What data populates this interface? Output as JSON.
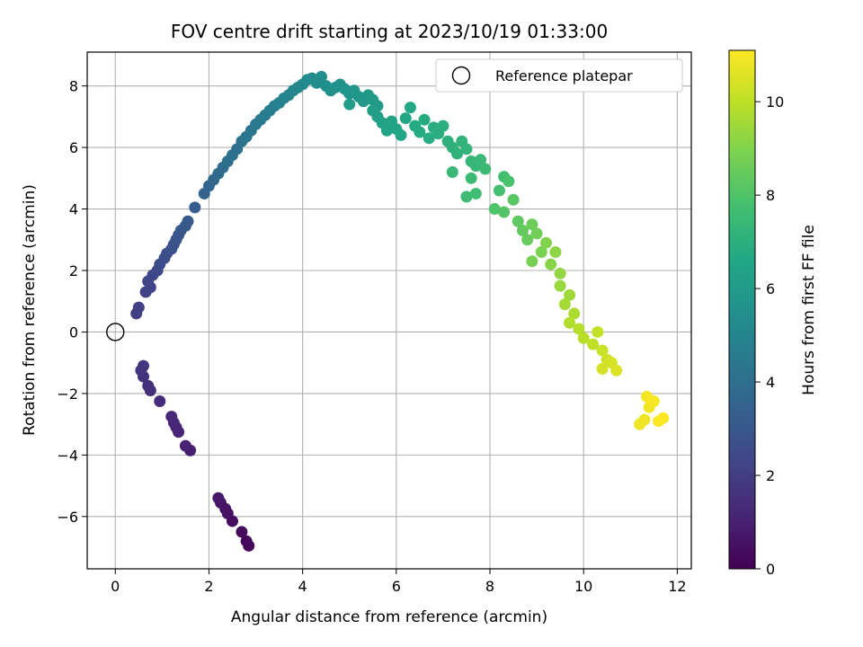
{
  "chart_data": {
    "type": "scatter",
    "title": "FOV centre drift starting at 2023/10/19 01:33:00",
    "xlabel": "Angular distance from reference (arcmin)",
    "ylabel": "Rotation from reference (arcmin)",
    "xlim": [
      -0.6,
      12.3
    ],
    "ylim": [
      -7.7,
      9.1
    ],
    "xticks": [
      0,
      2,
      4,
      6,
      8,
      10,
      12
    ],
    "yticks": [
      -6,
      -4,
      -2,
      0,
      2,
      4,
      6,
      8
    ],
    "grid": true,
    "legend": {
      "position": "top-right",
      "entries": [
        "Reference platepar"
      ]
    },
    "reference_point": {
      "label": "Reference platepar",
      "x": 0,
      "y": 0
    },
    "colorbar": {
      "label": "Hours from first FF file",
      "colormap": "viridis",
      "range": [
        0,
        11.1
      ],
      "ticks": [
        0,
        2,
        4,
        6,
        8,
        10
      ]
    },
    "series": [
      {
        "name": "FOV centre drift",
        "points": [
          [
            2.85,
            -6.95,
            0.1
          ],
          [
            2.8,
            -6.8,
            0.2
          ],
          [
            2.7,
            -6.5,
            0.3
          ],
          [
            2.5,
            -6.15,
            0.4
          ],
          [
            2.4,
            -5.9,
            0.5
          ],
          [
            2.35,
            -5.75,
            0.55
          ],
          [
            2.25,
            -5.55,
            0.6
          ],
          [
            2.2,
            -5.4,
            0.7
          ],
          [
            1.6,
            -3.85,
            0.9
          ],
          [
            1.5,
            -3.7,
            1.0
          ],
          [
            1.35,
            -3.25,
            1.1
          ],
          [
            1.3,
            -3.1,
            1.15
          ],
          [
            1.25,
            -2.95,
            1.2
          ],
          [
            1.2,
            -2.75,
            1.3
          ],
          [
            0.95,
            -2.25,
            1.4
          ],
          [
            0.75,
            -1.9,
            1.5
          ],
          [
            0.7,
            -1.75,
            1.55
          ],
          [
            0.6,
            -1.45,
            1.6
          ],
          [
            0.55,
            -1.25,
            1.7
          ],
          [
            0.6,
            -1.1,
            1.75
          ],
          [
            0.45,
            0.6,
            2.0
          ],
          [
            0.5,
            0.8,
            2.05
          ],
          [
            0.65,
            1.3,
            2.2
          ],
          [
            0.75,
            1.45,
            2.25
          ],
          [
            0.7,
            1.65,
            2.3
          ],
          [
            0.8,
            1.85,
            2.35
          ],
          [
            0.9,
            2.0,
            2.4
          ],
          [
            0.95,
            2.2,
            2.5
          ],
          [
            1.05,
            2.4,
            2.6
          ],
          [
            1.1,
            2.55,
            2.65
          ],
          [
            1.2,
            2.7,
            2.7
          ],
          [
            1.25,
            2.85,
            2.8
          ],
          [
            1.3,
            3.0,
            2.85
          ],
          [
            1.35,
            3.15,
            2.9
          ],
          [
            1.4,
            3.3,
            3.0
          ],
          [
            1.5,
            3.45,
            3.05
          ],
          [
            1.55,
            3.6,
            3.1
          ],
          [
            1.7,
            4.05,
            3.3
          ],
          [
            1.9,
            4.5,
            3.5
          ],
          [
            2.0,
            4.75,
            3.6
          ],
          [
            2.1,
            4.95,
            3.7
          ],
          [
            2.2,
            5.15,
            3.8
          ],
          [
            2.3,
            5.35,
            3.9
          ],
          [
            2.4,
            5.55,
            4.0
          ],
          [
            2.5,
            5.75,
            4.1
          ],
          [
            2.6,
            5.95,
            4.15
          ],
          [
            2.7,
            6.2,
            4.2
          ],
          [
            2.8,
            6.35,
            4.3
          ],
          [
            2.9,
            6.55,
            4.4
          ],
          [
            3.0,
            6.75,
            4.5
          ],
          [
            3.1,
            6.9,
            4.55
          ],
          [
            3.2,
            7.05,
            4.6
          ],
          [
            3.3,
            7.2,
            4.7
          ],
          [
            3.4,
            7.35,
            4.75
          ],
          [
            3.5,
            7.45,
            4.8
          ],
          [
            3.6,
            7.6,
            4.9
          ],
          [
            3.7,
            7.7,
            5.0
          ],
          [
            3.8,
            7.85,
            5.1
          ],
          [
            3.9,
            7.95,
            5.15
          ],
          [
            4.0,
            8.05,
            5.2
          ],
          [
            4.1,
            8.2,
            5.3
          ],
          [
            4.2,
            8.25,
            5.35
          ],
          [
            4.3,
            8.1,
            5.4
          ],
          [
            4.4,
            8.3,
            5.45
          ],
          [
            4.5,
            8.0,
            5.5
          ],
          [
            4.6,
            7.85,
            5.55
          ],
          [
            4.7,
            7.95,
            5.6
          ],
          [
            4.8,
            8.05,
            5.65
          ],
          [
            4.9,
            7.9,
            5.7
          ],
          [
            5.0,
            7.75,
            5.75
          ],
          [
            5.1,
            7.85,
            5.8
          ],
          [
            5.2,
            7.65,
            5.85
          ],
          [
            5.3,
            7.5,
            5.9
          ],
          [
            5.4,
            7.7,
            5.95
          ],
          [
            5.5,
            7.55,
            6.0
          ],
          [
            5.6,
            7.35,
            6.05
          ],
          [
            5.0,
            7.4,
            6.1
          ],
          [
            5.5,
            7.2,
            6.15
          ],
          [
            5.6,
            7.0,
            6.2
          ],
          [
            5.7,
            6.8,
            6.3
          ],
          [
            5.8,
            6.55,
            6.4
          ],
          [
            5.9,
            6.85,
            6.45
          ],
          [
            6.0,
            6.6,
            6.5
          ],
          [
            6.1,
            6.4,
            6.55
          ],
          [
            6.2,
            6.95,
            6.6
          ],
          [
            6.3,
            7.3,
            6.65
          ],
          [
            6.4,
            6.7,
            6.7
          ],
          [
            6.5,
            6.5,
            6.75
          ],
          [
            6.6,
            6.9,
            6.8
          ],
          [
            6.7,
            6.3,
            6.85
          ],
          [
            6.8,
            6.65,
            6.9
          ],
          [
            6.9,
            6.45,
            6.95
          ],
          [
            7.0,
            6.7,
            7.0
          ],
          [
            7.1,
            6.2,
            7.05
          ],
          [
            7.2,
            6.0,
            7.1
          ],
          [
            7.3,
            5.8,
            7.15
          ],
          [
            7.4,
            6.2,
            7.2
          ],
          [
            7.5,
            5.95,
            7.25
          ],
          [
            7.6,
            5.55,
            7.3
          ],
          [
            7.7,
            5.4,
            7.35
          ],
          [
            7.2,
            5.2,
            7.4
          ],
          [
            7.8,
            5.6,
            7.45
          ],
          [
            7.9,
            5.3,
            7.5
          ],
          [
            7.6,
            5.0,
            7.55
          ],
          [
            7.5,
            4.4,
            7.6
          ],
          [
            7.7,
            4.5,
            7.65
          ],
          [
            8.3,
            5.05,
            7.7
          ],
          [
            8.2,
            4.6,
            7.8
          ],
          [
            8.4,
            4.9,
            7.9
          ],
          [
            8.1,
            4.0,
            8.0
          ],
          [
            8.3,
            3.9,
            8.1
          ],
          [
            8.5,
            4.3,
            8.2
          ],
          [
            8.6,
            3.6,
            8.3
          ],
          [
            8.7,
            3.3,
            8.4
          ],
          [
            8.8,
            3.0,
            8.5
          ],
          [
            8.9,
            3.5,
            8.6
          ],
          [
            9.0,
            3.2,
            8.7
          ],
          [
            8.9,
            2.3,
            8.8
          ],
          [
            9.1,
            2.6,
            8.9
          ],
          [
            9.2,
            2.9,
            9.0
          ],
          [
            9.3,
            2.2,
            9.1
          ],
          [
            9.4,
            2.6,
            9.2
          ],
          [
            9.5,
            1.9,
            9.3
          ],
          [
            9.5,
            1.5,
            9.4
          ],
          [
            9.7,
            1.2,
            9.5
          ],
          [
            9.6,
            0.9,
            9.6
          ],
          [
            9.8,
            0.6,
            9.7
          ],
          [
            9.7,
            0.3,
            9.8
          ],
          [
            9.9,
            0.1,
            9.85
          ],
          [
            10.0,
            -0.2,
            9.9
          ],
          [
            10.2,
            -0.4,
            10.0
          ],
          [
            10.3,
            0.0,
            10.1
          ],
          [
            10.4,
            -0.6,
            10.2
          ],
          [
            10.5,
            -0.9,
            10.3
          ],
          [
            10.4,
            -1.2,
            10.35
          ],
          [
            10.6,
            -1.0,
            10.4
          ],
          [
            10.7,
            -1.25,
            10.5
          ],
          [
            11.3,
            -2.85,
            10.8
          ],
          [
            11.2,
            -3.0,
            10.85
          ],
          [
            11.4,
            -2.45,
            10.9
          ],
          [
            11.35,
            -2.1,
            10.95
          ],
          [
            11.5,
            -2.25,
            11.0
          ],
          [
            11.6,
            -2.9,
            11.05
          ],
          [
            11.7,
            -2.8,
            11.1
          ]
        ]
      }
    ]
  }
}
